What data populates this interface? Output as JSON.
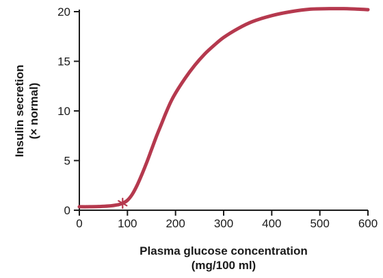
{
  "chart_data": {
    "type": "line",
    "xlabel": [
      "Plasma glucose concentration",
      "(mg/100 ml)"
    ],
    "ylabel": [
      "Insulin secretion",
      "(× normal)"
    ],
    "xlim": [
      0,
      600
    ],
    "ylim": [
      0,
      20
    ],
    "xticks": [
      0,
      100,
      200,
      300,
      400,
      500,
      600
    ],
    "yticks": [
      0,
      5,
      10,
      15,
      20
    ],
    "grid": false,
    "series": [
      {
        "color": "#b5394e",
        "x": [
          0,
          20,
          40,
          60,
          80,
          90,
          100,
          110,
          120,
          130,
          140,
          150,
          160,
          170,
          180,
          190,
          200,
          220,
          240,
          260,
          280,
          300,
          330,
          360,
          400,
          440,
          480,
          520,
          550,
          580,
          600
        ],
        "y": [
          0.35,
          0.35,
          0.37,
          0.42,
          0.55,
          0.7,
          1.0,
          1.6,
          2.5,
          3.6,
          4.8,
          6.1,
          7.4,
          8.6,
          9.8,
          10.9,
          11.8,
          13.3,
          14.6,
          15.7,
          16.6,
          17.4,
          18.3,
          19.0,
          19.6,
          20.0,
          20.25,
          20.3,
          20.3,
          20.25,
          20.2
        ]
      }
    ],
    "annotations": [
      {
        "marker": "asterisk",
        "x": 90,
        "y": 0.7,
        "color": "#b5394e"
      }
    ]
  }
}
